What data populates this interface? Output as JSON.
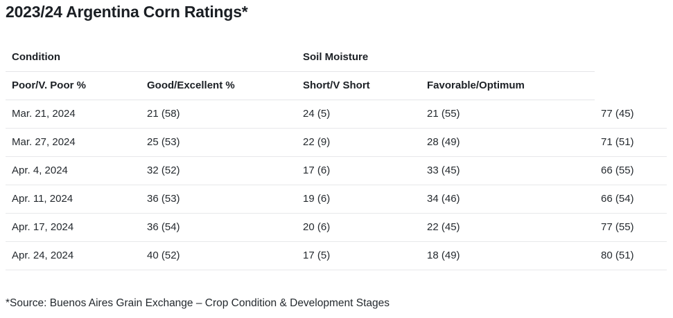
{
  "title": "2023/24 Argentina Corn Ratings*",
  "footnote": "*Source: Buenos Aires Grain Exchange – Crop Condition & Development Stages",
  "chart_data": {
    "type": "table",
    "title": "2023/24 Argentina Corn Ratings*",
    "group_headers": [
      {
        "label": "Condition",
        "span": 2
      },
      {
        "label": "Soil Moisture",
        "span": 2
      },
      {
        "label": "",
        "span": 1
      }
    ],
    "columns": [
      "Poor/V. Poor %",
      "Good/Excellent %",
      "Short/V Short",
      "Favorable/Optimum",
      ""
    ],
    "rows": [
      [
        "Mar. 21, 2024",
        "21 (58)",
        "24 (5)",
        "21 (55)",
        "77 (45)"
      ],
      [
        "Mar. 27, 2024",
        "25 (53)",
        "22 (9)",
        "28 (49)",
        "71 (51)"
      ],
      [
        "Apr. 4, 2024",
        "32 (52)",
        "17 (6)",
        "33 (45)",
        "66 (55)"
      ],
      [
        "Apr. 11, 2024",
        "36 (53)",
        "19 (6)",
        "34 (46)",
        "66 (54)"
      ],
      [
        "Apr. 17, 2024",
        "36 (54)",
        "20 (6)",
        "22 (45)",
        "77 (55)"
      ],
      [
        "Apr. 24, 2024",
        "40 (52)",
        "17 (5)",
        "18 (49)",
        "80 (51)"
      ]
    ],
    "footnote": "*Source: Buenos Aires Grain Exchange – Crop Condition & Development Stages",
    "layout_hints": {
      "grid": "horizontal-row-dividers-only",
      "header_divider_spans_first_four_columns": true
    }
  },
  "colors": {
    "background": "#ffffff",
    "text": "#24292e",
    "title_text": "#1a1e23",
    "border": "#e4e5e8"
  }
}
